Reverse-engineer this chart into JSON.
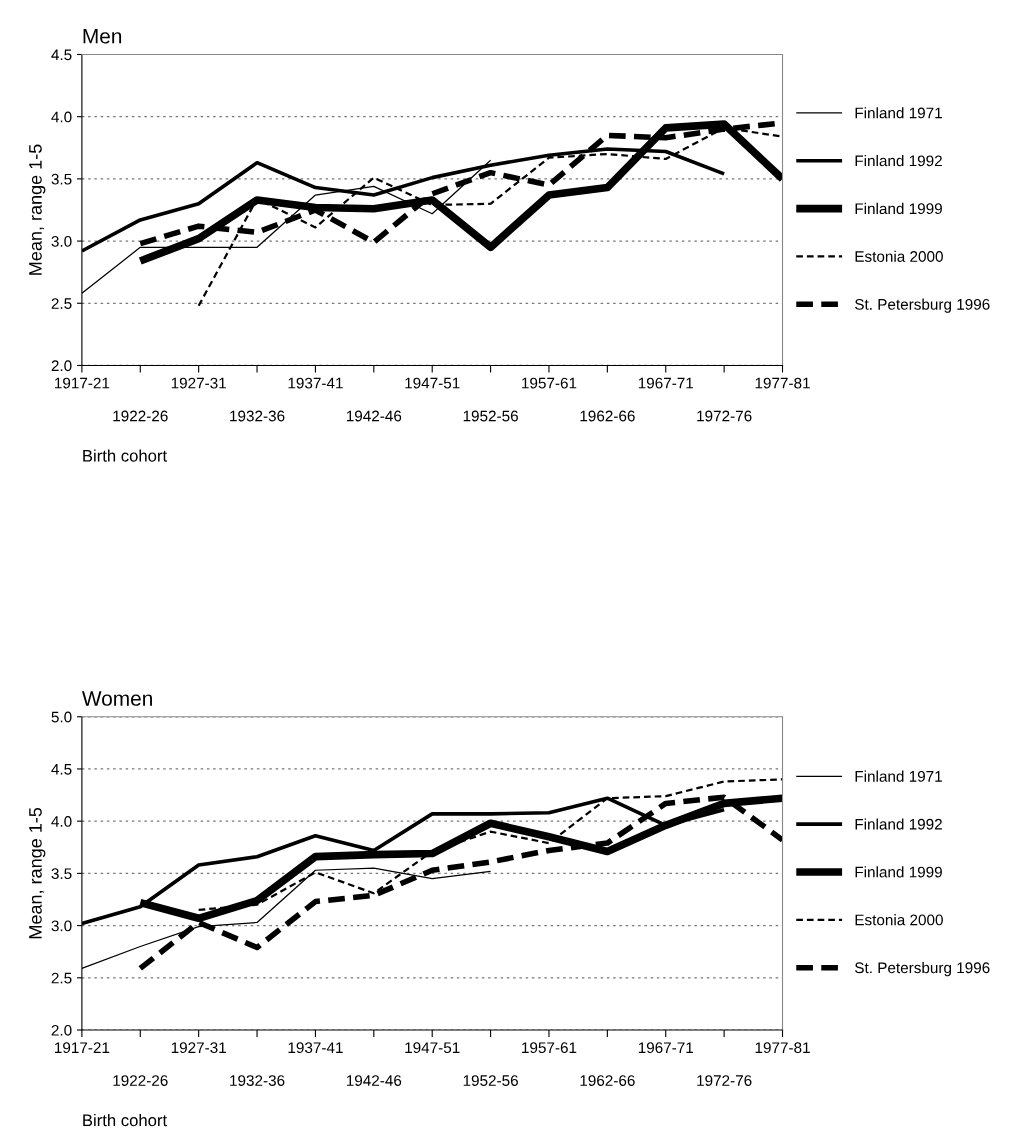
{
  "chart_data": [
    {
      "type": "line",
      "title": "Men",
      "xlabel": "Birth cohort",
      "ylabel": "Mean, range 1-5",
      "categories": [
        "1917-21",
        "1922-26",
        "1927-31",
        "1932-36",
        "1937-41",
        "1942-46",
        "1947-51",
        "1952-56",
        "1957-61",
        "1962-66",
        "1967-71",
        "1972-76",
        "1977-81"
      ],
      "ylim": [
        2.0,
        4.5
      ],
      "yticks": [
        {
          "value": 2.0,
          "label": "2.0"
        },
        {
          "value": 2.5,
          "label": "2.5"
        },
        {
          "value": 3.0,
          "label": "3.0"
        },
        {
          "value": 3.5,
          "label": "3.5"
        },
        {
          "value": 4.0,
          "label": "4.0"
        },
        {
          "value": 4.5,
          "label": "4.5"
        }
      ],
      "grid": "y",
      "legend": "right",
      "marker": "none",
      "series": [
        {
          "name": "Finland 1971",
          "color": "#000000",
          "line_style": "solid",
          "values": [
            2.58,
            2.95,
            2.95,
            2.95,
            3.37,
            3.44,
            3.22,
            3.65,
            null,
            null,
            null,
            null,
            null
          ]
        },
        {
          "name": "Finland 1992",
          "color": "#000000",
          "line_style": "solid",
          "values": [
            2.92,
            3.17,
            3.3,
            3.63,
            3.43,
            3.37,
            3.51,
            3.61,
            3.69,
            3.74,
            3.72,
            3.54,
            null
          ]
        },
        {
          "name": "Finland 1999",
          "color": "#000000",
          "line_style": "solid",
          "values": [
            null,
            2.84,
            3.02,
            3.33,
            3.27,
            3.26,
            3.33,
            2.95,
            3.37,
            3.43,
            3.91,
            3.94,
            3.5
          ]
        },
        {
          "name": "Estonia 2000",
          "color": "#000000",
          "line_style": "dashed",
          "values": [
            null,
            null,
            2.48,
            3.34,
            3.11,
            3.51,
            3.29,
            3.3,
            3.67,
            3.7,
            3.66,
            3.91,
            3.84
          ]
        },
        {
          "name": "St. Petersburg 1996",
          "color": "#000000",
          "line_style": "dashed",
          "values": [
            null,
            2.98,
            3.12,
            3.07,
            3.25,
            2.99,
            3.38,
            3.55,
            3.45,
            3.85,
            3.83,
            3.9,
            3.95
          ]
        }
      ]
    },
    {
      "type": "line",
      "title": "Women",
      "xlabel": "Birth cohort",
      "ylabel": "Mean, range 1-5",
      "categories": [
        "1917-21",
        "1922-26",
        "1927-31",
        "1932-36",
        "1937-41",
        "1942-46",
        "1947-51",
        "1952-56",
        "1957-61",
        "1962-66",
        "1967-71",
        "1972-76",
        "1977-81"
      ],
      "ylim": [
        2.0,
        5.0
      ],
      "yticks": [
        {
          "value": 2.0,
          "label": "2.0"
        },
        {
          "value": 2.5,
          "label": "2.5"
        },
        {
          "value": 3.0,
          "label": "3.0"
        },
        {
          "value": 3.5,
          "label": "3.5"
        },
        {
          "value": 4.0,
          "label": "4.0"
        },
        {
          "value": 4.5,
          "label": "4.5"
        },
        {
          "value": 5.0,
          "label": "5.0"
        }
      ],
      "grid": "y",
      "legend": "right",
      "marker": "none",
      "series": [
        {
          "name": "Finland 1971",
          "color": "#000000",
          "line_style": "solid",
          "values": [
            2.59,
            2.8,
            2.99,
            3.03,
            3.53,
            3.55,
            3.45,
            3.52,
            null,
            null,
            null,
            null,
            null
          ]
        },
        {
          "name": "Finland 1992",
          "color": "#000000",
          "line_style": "solid",
          "values": [
            3.02,
            3.18,
            3.58,
            3.66,
            3.86,
            3.72,
            4.07,
            4.07,
            4.08,
            4.22,
            3.96,
            4.11,
            null
          ]
        },
        {
          "name": "Finland 1999",
          "color": "#000000",
          "line_style": "solid",
          "values": [
            null,
            3.22,
            3.07,
            3.24,
            3.66,
            3.68,
            3.69,
            3.98,
            3.85,
            3.71,
            3.96,
            4.17,
            4.22
          ]
        },
        {
          "name": "Estonia 2000",
          "color": "#000000",
          "line_style": "dashed",
          "values": [
            null,
            null,
            3.15,
            3.2,
            3.51,
            3.31,
            3.71,
            3.9,
            3.79,
            4.22,
            4.24,
            4.38,
            4.4
          ]
        },
        {
          "name": "St. Petersburg 1996",
          "color": "#000000",
          "line_style": "dashed",
          "values": [
            null,
            2.59,
            3.03,
            2.79,
            3.23,
            3.29,
            3.53,
            3.61,
            3.72,
            3.79,
            4.17,
            4.23,
            3.82
          ]
        }
      ]
    }
  ]
}
